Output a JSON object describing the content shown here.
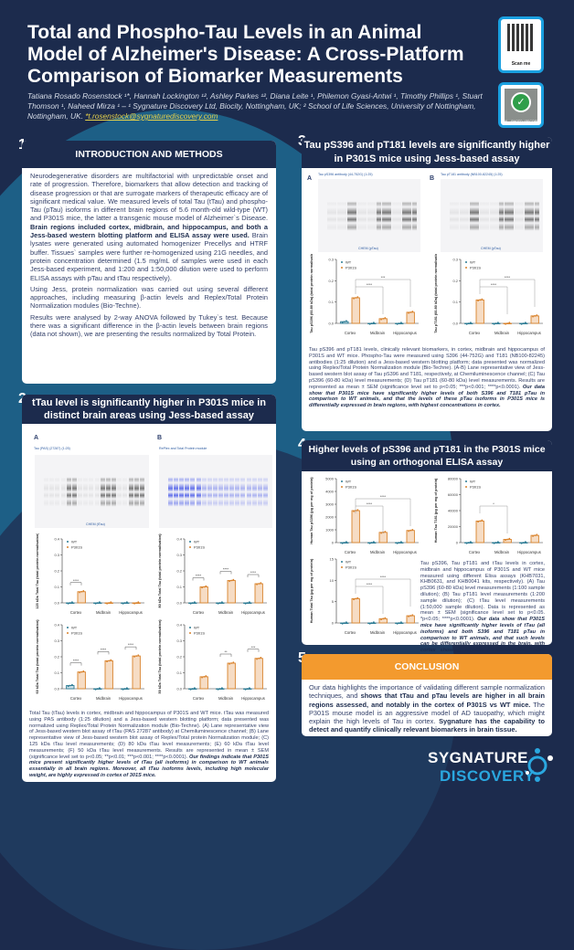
{
  "header": {
    "title": "Total and Phospho-Tau Levels in an Animal Model of Alzheimer's Disease: A Cross-Platform Comparison of Biomarker Measurements",
    "authors": "Tatiana Rosado Rosenstock ¹*, Hannah Lockington ¹², Ashley Parkes ¹², Diana Leite ¹, Philemon Gyasi-Antwi ¹, Timothy Phillips ¹, Stuart Thomson ¹, Naheed Mirza ¹ – ¹ Sygnature Discovery Ltd, Biocity, Nottingham, UK; ² School of Life Sciences, University of Nottingham, Nottingham, UK. ",
    "email": "*t.rosenstock@sygnaturediscovery.com",
    "qr_label": "Scan me",
    "photo_label": "OK – PHOTO / RECORD"
  },
  "sections": [
    {
      "number": "1",
      "title": "INTRODUCTION AND METHODS",
      "p1_plain": "Neurodegenerative disorders are multifactorial with unpredictable onset and rate of progression. Therefore, biomarkers that allow detection and tracking of disease progression or that are surrogate markers of therapeutic efficacy are of significant medical value. We measured levels of total Tau (tTau) and phospho-Tau (pTau) isoforms in different brain regions of 5.6 month-old wild-type (WT) and P301S mice, the latter a transgenic mouse model of Alzheimer`s Disease. ",
      "p1_bold": "Brain regions included cortex, midbrain, and hippocampus, and both a Jess-based western blotting platform and ELISA assay were used.",
      "p1_tail": " Brain lysates were generated using automated homogenizer Precellys and HTRF buffer. Tissues` samples were further re-homogenized using 21G needles, and protein concentration determined (1.5 mg/mL of samples were used in each Jess-based experiment, and 1:200 and 1:50,000 dilution were used to perform ELISA assays with pTau and tTau respectively).",
      "p2": "Using Jess, protein normalization was carried out using several different approaches, including measuring β-actin levels and Replex/Total Protein Normalization modules (Bio-Techne).",
      "p3": "Results were analysed by 2-way ANOVA followed by Tukey`s test. Because there was a significant difference in the β-actin levels between brain regions (data not shown), we are presenting the results normalized by Total Protein."
    },
    {
      "number": "2",
      "title": "tTau level is significantly higher in P301S mice in distinct brain areas using Jess-based assay",
      "blot_a_letter": "A",
      "blot_a_title": "Tau (PAS) (27287) (1:25)",
      "blot_a_channel": "CHEM (tTau)",
      "blot_b_letter": "B",
      "blot_b_title": "RePlex and Total Protein module",
      "caption_plain": "Total Tau (tTau) levels in cortex, midbrain and hippocampus of P301S and WT mice. tTau was measured using PAS antibody (1:25 dilution) and a Jess-based western blotting platform; data presented was normalized using Replex/Total Protein Normalization module (Bio-Techne). (A) Lane representative view of Jess-based western blot assay of tTau (PAS 27287 antibody) at Chemiluminescence channel; (B) Lane representative view of Jess-based western blot assay of Replex/Total protein Normalization module; (C) 125 kDa tTau level measurements; (D) 80 kDa tTau level measurements; (E) 60 kDa tTau level measurements; (F) 50 kDa tTau level measurements. Results are represented in mean ± SEM (significance level set to p<0.05; **p<0.01; ***p<0.001; ****p<0.0001). ",
      "caption_bold": "Our findings indicate that P301S mice present significantly higher levels of tTau (all isoforms) in comparison to WT animals essentially in all brain regions. Moreover, all tTau isoforms levels, including high molecular weight, are highly expressed in cortex of 301S mice."
    },
    {
      "number": "3",
      "title": "Tau pS396 and pT181 levels are significantly higher in P301S mice using Jess-based assay",
      "blot_a_letter": "A",
      "blot_a_title": "Tau pS396 antibody (44-752G) (1:25)",
      "blot_a_channel": "CHEM (pTau)",
      "blot_b_letter": "B",
      "blot_b_title": "Tau pT181 antibody (NB100-82245) (1:25)",
      "blot_b_channel": "CHEM (pTau)",
      "caption_plain": "Tau pS396 and pT181 levels, clinically relevant biomarkers, in cortex, midbrain and hippocampus of P301S and WT mice. Phospho-Tau were measured using S396 (44-752G) and T181 (NB100-82245) antibodies (1:25 dilution) and a Jess-based western blotting platform; data presented was normalized using Replex/Total Protein Normalization module (Bio-Techne). (A-B) Lane representative view of Jess-based western blot assay of Tau pS396 and T181, respectively, at Chemiluminescence channel; (C) Tau pS396 (60-80 kDa) level measurements; (D) Tau pT181 (60-80 kDa) level measurements. Results are represented as mean ± SEM (significance level set to p<0.05; ***p<0.001; ****p<0.0001). ",
      "caption_bold": "Our data show that P301S mice have significantly higher levels of both S396 and T181 pTau in comparison to WT animals, and that the levels of these pTau isoforms in P301S mice is differentially expressed in brain regions, with highest concentrations in cortex."
    },
    {
      "number": "4",
      "title": "Higher levels of pS396 and pT181 in the P301S mice using an orthogonal ELISA assay",
      "caption_plain": "Tau pS396, Tau pT181 and tTau levels in cortex, midbrain and hippocampus of P301S and WT mice measured using different Elisa assays (KHB7031, KHB0631, and KHB0041 kits, respectively). (A) Tau pS396 (60-80 kDa) level measurements (1:100 sample dilution); (B) Tau pT181 level measurements (1:200 sample dilution); (C) tTau level measurements (1:50,000 sample dilution). Data is represented as mean ± SEM (significance level set to p<0.05. *p<0.05; ****p<0.0001). ",
      "caption_bold": "Our data show that P301S mice have significantly higher levels of tTau (all isoforms) and both S396 and T181 pTau in comparison to WT animals, and that such levels can be differentially expressed in the brain, with cortex showing highest concentrations. These data are consistent with the Jess-based assay data."
    },
    {
      "number": "5",
      "title": "CONCLUSION",
      "p_plain1": "Our data highlights the importance of validating different sample normalization techniques, and ",
      "p_bold1": "shows that tTau and pTau levels are higher in all brain regions assessed, and notably in the cortex of P301S vs WT mice.",
      "p_plain2": " The P301S mouse model is an aggressive model of AD tauopathy, which might explain the high levels of Tau in cortex. ",
      "p_bold2": "Sygnature has the capability to detect and quantify clinically relevant biomarkers in brain tissue."
    }
  ],
  "logo": {
    "line1": "SYGNATURE",
    "line2": "DISCOVERY"
  },
  "colors": {
    "navy": "#1c2b4d",
    "orange": "#f39a2e",
    "wt": "#2a7a93",
    "p301s": "#d9822b",
    "accent": "#1aa0e0"
  },
  "chart_data": [
    {
      "id": "2C",
      "type": "bar",
      "title": "",
      "ylabel": "125 kDa Total Tau (total protein normalisation)",
      "categories": [
        "Cortex",
        "Midbrain",
        "Hippocampus"
      ],
      "ylim": [
        0,
        0.4
      ],
      "yticks": [
        "0.0",
        "0.1",
        "0.2",
        "0.3",
        "0.4"
      ],
      "legend": [
        "WT",
        "P301S"
      ],
      "series": [
        {
          "name": "WT",
          "values": [
            0,
            0,
            0
          ]
        },
        {
          "name": "P301S",
          "values": [
            0.07,
            0,
            0
          ]
        }
      ],
      "sig": [
        {
          "cat": 0,
          "label": "****"
        }
      ]
    },
    {
      "id": "2D",
      "type": "bar",
      "ylabel": "80 kDa Total Tau (total protein normalisation)",
      "categories": [
        "Cortex",
        "Midbrain",
        "Hippocampus"
      ],
      "ylim": [
        0,
        0.4
      ],
      "yticks": [
        "0.0",
        "0.1",
        "0.2",
        "0.3",
        "0.4"
      ],
      "legend": [
        "WT",
        "P301S"
      ],
      "series": [
        {
          "name": "WT",
          "values": [
            0,
            0,
            0
          ]
        },
        {
          "name": "P301S",
          "values": [
            0.1,
            0.14,
            0.12
          ]
        }
      ],
      "sig": [
        {
          "cat": 0,
          "label": "****"
        },
        {
          "cat": 1,
          "label": "****"
        },
        {
          "cat": 2,
          "label": "****"
        }
      ]
    },
    {
      "id": "2E",
      "type": "bar",
      "ylabel": "60 kDa Total Tau (total protein normalisation)",
      "categories": [
        "Cortex",
        "Midbrain",
        "Hippocampus"
      ],
      "ylim": [
        0,
        0.4
      ],
      "yticks": [
        "0.0",
        "0.1",
        "0.2",
        "0.3",
        "0.4"
      ],
      "legend": [
        "WT",
        "P301S"
      ],
      "series": [
        {
          "name": "WT",
          "values": [
            0.02,
            0,
            0
          ]
        },
        {
          "name": "P301S",
          "values": [
            0.105,
            0.175,
            0.205
          ]
        }
      ],
      "sig": [
        {
          "cat": 0,
          "label": "****"
        },
        {
          "cat": 1,
          "label": "****"
        },
        {
          "cat": 2,
          "label": "****"
        }
      ]
    },
    {
      "id": "2F",
      "type": "bar",
      "ylabel": "50 kDa Total Tau (total protein normalisation)",
      "categories": [
        "Cortex",
        "Midbrain",
        "Hippocampus"
      ],
      "ylim": [
        0,
        0.4
      ],
      "yticks": [
        "0.0",
        "0.1",
        "0.2",
        "0.3",
        "0.4"
      ],
      "legend": [
        "WT",
        "P301S"
      ],
      "series": [
        {
          "name": "WT",
          "values": [
            0,
            0,
            0
          ]
        },
        {
          "name": "P301S",
          "values": [
            0.075,
            0.16,
            0.19
          ]
        }
      ],
      "sig": [
        {
          "cat": 1,
          "label": "**"
        },
        {
          "cat": 2,
          "label": "***"
        }
      ]
    },
    {
      "id": "3C",
      "type": "bar",
      "ylabel": "Tau pS396 (60-80 kDa) (total protein normalisation)",
      "categories": [
        "Cortex",
        "Midbrain",
        "Hippocampus"
      ],
      "ylim": [
        0,
        0.3
      ],
      "yticks": [
        "0.0",
        "0.1",
        "0.2",
        "0.3"
      ],
      "legend": [
        "WT",
        "P301S"
      ],
      "series": [
        {
          "name": "WT",
          "values": [
            0.008,
            0,
            0
          ]
        },
        {
          "name": "P301S",
          "values": [
            0.12,
            0.022,
            0.052
          ]
        }
      ],
      "sig": [
        {
          "from": 0,
          "to": 1,
          "label": "****"
        },
        {
          "from": 0,
          "to": 2,
          "label": "***"
        }
      ]
    },
    {
      "id": "3D",
      "type": "bar",
      "ylabel": "Tau pT181 (60-80 kDa) (total protein normalisation)",
      "categories": [
        "Cortex",
        "Midbrain",
        "Hippocampus"
      ],
      "ylim": [
        0,
        0.3
      ],
      "yticks": [
        "0.0",
        "0.1",
        "0.2",
        "0.3"
      ],
      "legend": [
        "WT",
        "P301S"
      ],
      "series": [
        {
          "name": "WT",
          "values": [
            0,
            0,
            0
          ]
        },
        {
          "name": "P301S",
          "values": [
            0.11,
            0,
            0.035
          ]
        }
      ],
      "sig": [
        {
          "from": 0,
          "to": 1,
          "label": "****"
        },
        {
          "from": 0,
          "to": 2,
          "label": "****"
        }
      ]
    },
    {
      "id": "4A",
      "type": "bar",
      "ylabel": "Human Tau pS396 (pg per mg of protein)",
      "categories": [
        "Cortex",
        "Midbrain",
        "Hippocampus"
      ],
      "ylim": [
        0,
        5000
      ],
      "yticks": [
        "0",
        "1000",
        "2000",
        "3000",
        "4000",
        "5000"
      ],
      "legend": [
        "WT",
        "P301S"
      ],
      "series": [
        {
          "name": "WT",
          "values": [
            0,
            0,
            0
          ]
        },
        {
          "name": "P301S",
          "values": [
            2500,
            800,
            950
          ]
        }
      ],
      "sig": [
        {
          "from": 0,
          "to": 1,
          "label": "****"
        },
        {
          "from": 0,
          "to": 2,
          "label": "****"
        }
      ]
    },
    {
      "id": "4B",
      "type": "bar",
      "ylabel": "Human Tau T181 (pg per mg of protein)",
      "categories": [
        "Cortex",
        "Midbrain",
        "Hippocampus"
      ],
      "ylim": [
        0,
        80000
      ],
      "yticks": [
        "0",
        "20000",
        "40000",
        "60000",
        "80000"
      ],
      "legend": [
        "WT",
        "P301S"
      ],
      "series": [
        {
          "name": "WT",
          "values": [
            0,
            0,
            0
          ]
        },
        {
          "name": "P301S",
          "values": [
            27000,
            4000,
            9000
          ]
        }
      ],
      "sig": [
        {
          "from": 0,
          "to": 1,
          "label": "*"
        }
      ]
    },
    {
      "id": "4C",
      "type": "bar",
      "ylabel": "Human Total Tau (µg per mg of protein)",
      "categories": [
        "Cortex",
        "Midbrain",
        "Hippocampus"
      ],
      "ylim": [
        0,
        15
      ],
      "yticks": [
        "0",
        "5",
        "10",
        "15"
      ],
      "legend": [
        "WT",
        "P301S"
      ],
      "series": [
        {
          "name": "WT",
          "values": [
            0,
            0,
            0
          ]
        },
        {
          "name": "P301S",
          "values": [
            5.7,
            1.0,
            1.7
          ]
        }
      ],
      "sig": [
        {
          "from": 0,
          "to": 1,
          "label": "****"
        },
        {
          "from": 0,
          "to": 2,
          "label": "****"
        }
      ]
    }
  ]
}
